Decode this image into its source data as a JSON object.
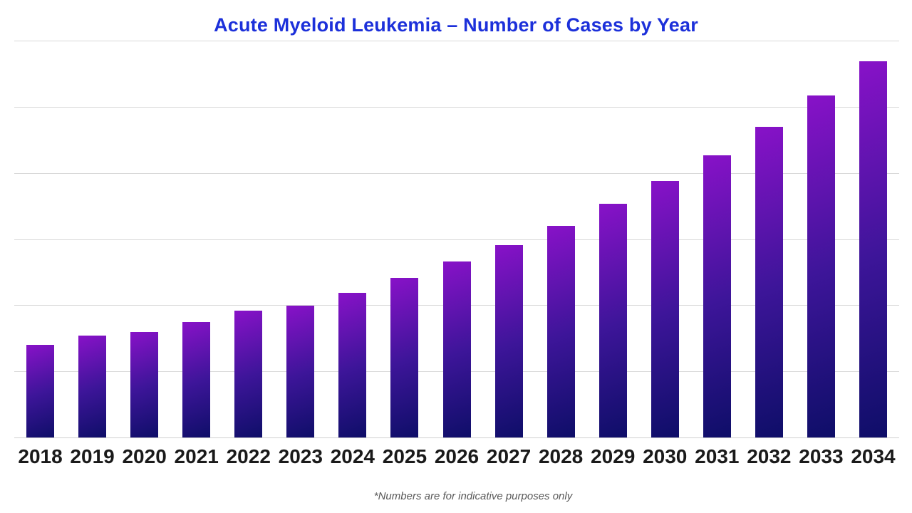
{
  "page": {
    "footnote": "*Numbers are for indicative purposes only"
  },
  "chart_data": {
    "type": "bar",
    "title": "Acute Myeloid Leukemia – Number of Cases by Year",
    "categories": [
      "2018",
      "2019",
      "2020",
      "2021",
      "2022",
      "2023",
      "2024",
      "2025",
      "2026",
      "2027",
      "2028",
      "2029",
      "2030",
      "2031",
      "2032",
      "2033",
      "2034"
    ],
    "values": [
      140,
      154,
      159,
      174,
      192,
      199,
      219,
      241,
      266,
      291,
      320,
      353,
      388,
      427,
      470,
      517,
      569
    ],
    "xlabel": "",
    "ylabel": "",
    "ylim": [
      0,
      600
    ],
    "gridline_interval": 100,
    "y_axis_labels_visible": false,
    "grid": true,
    "legend_position": "none",
    "annotations": [
      "*Numbers are for indicative purposes only"
    ]
  },
  "colors": {
    "background": "#ffffff",
    "title": "#1c30da",
    "bar_gradient_top": "#8812c8",
    "bar_gradient_mid": "#3d1599",
    "bar_gradient_bottom": "#0e0e68",
    "gridline": "#d9d9d9",
    "axis_line": "#d0d0d0",
    "tick_label": "#1a1a1a",
    "footnote": "#595959"
  }
}
